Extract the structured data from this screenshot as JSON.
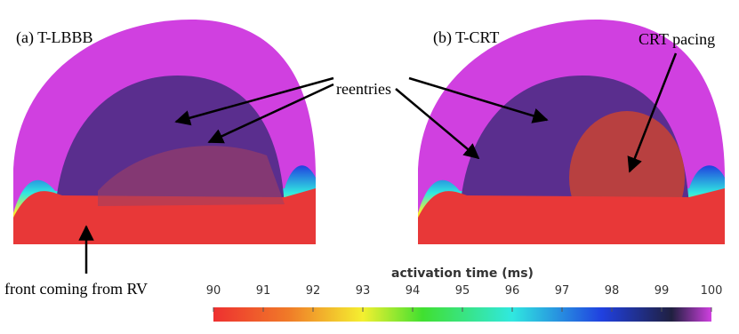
{
  "panels": [
    {
      "label": "(a) T-LBBB"
    },
    {
      "label": "(b) T-CRT"
    }
  ],
  "annotations": {
    "reentries": "reentries",
    "crt_pacing": "CRT pacing",
    "front": "front coming from RV"
  },
  "colorbar": {
    "title": "activation time (ms)",
    "lim": [
      90,
      100
    ],
    "ticks": [
      90,
      91,
      92,
      93,
      94,
      95,
      96,
      97,
      98,
      99,
      100
    ]
  }
}
